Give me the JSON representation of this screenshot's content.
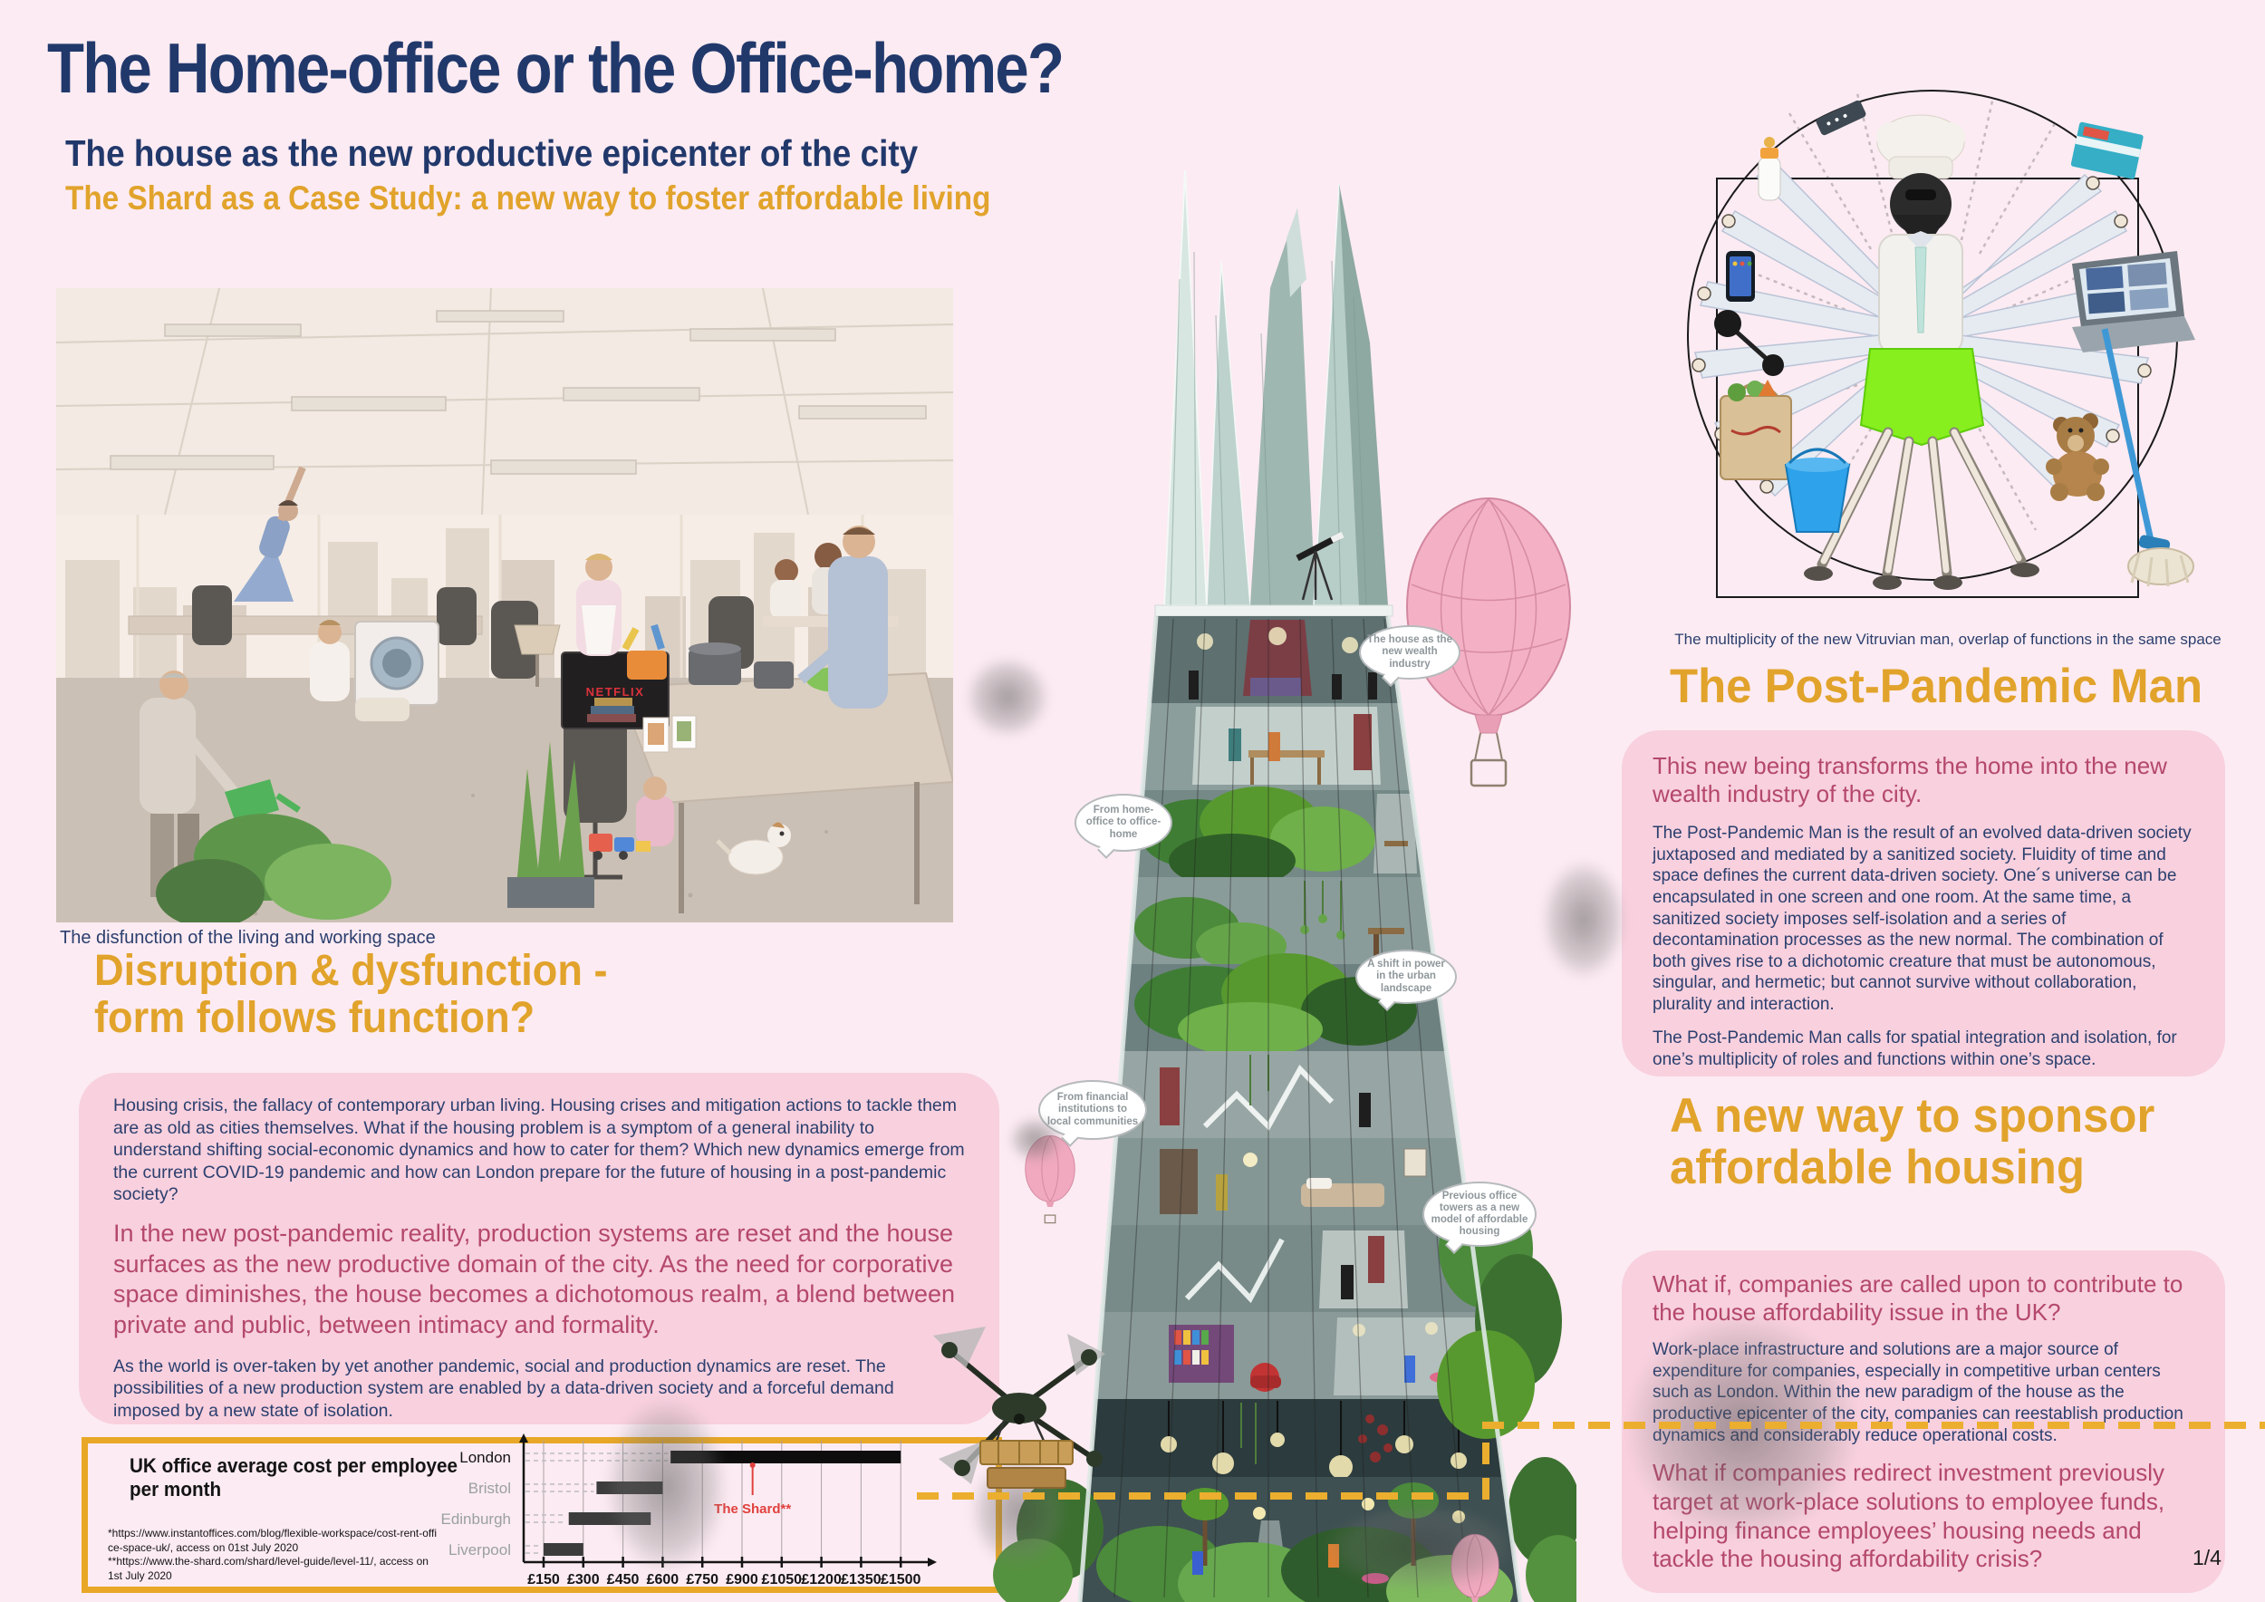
{
  "page": {
    "title": "The Home-office or the Office-home?",
    "subtitle": "The house as the new productive epicenter of the city",
    "tagline": "The Shard as a Case Study: a new way to foster affordable living",
    "page_number": "1/4"
  },
  "colors": {
    "background": "#fcebf2",
    "panel_pink": "#f8d0de",
    "navy": "#2b3f6e",
    "orange_accent": "#e1a32b",
    "magenta": "#b4486b",
    "chart_border": "#e8a727",
    "chart_annotation_red": "#e0413e",
    "route_dash_orange": "#ebae2e"
  },
  "office_photo": {
    "caption": "The disfunction of the living and working space",
    "tv_label": "NETFLIX"
  },
  "disruption": {
    "heading_line1": "Disruption & dysfunction -",
    "heading_line2": "form follows function?",
    "p1": "Housing crisis, the fallacy of contemporary urban living. Housing crises and mitigation actions to tackle them are as old as cities themselves. What if the housing problem is a symptom of a general inability to understand shifting social-economic dynamics and how to cater for them? Which new dynamics emerge from the current COVID-19 pandemic and how can London prepare for the future of housing in a post-pandemic society?",
    "p2": "In the new post-pandemic reality, production systems are reset and the house surfaces as the new productive domain of the city. As the need for corporative space diminishes, the house becomes a dichotomous realm, a blend between private and public, between intimacy and formality.",
    "p3": "As the world is over-taken by yet another pandemic, social and production dynamics are reset. The possibilities of a new production system are enabled by a data-driven society and a forceful demand imposed by a new state of isolation."
  },
  "chart": {
    "title_line1": "UK office average cost per employee",
    "title_line2": "per month",
    "footnote1": "*https://www.instantoffices.com/blog/flexible-workspace/cost-rent-offi",
    "footnote2": "ce-space-uk/, access on 01st July 2020",
    "footnote3": "**https://www.the-shard.com/shard/level-guide/level-11/, access on",
    "footnote4": "1st July 2020"
  },
  "chart_data": {
    "type": "bar",
    "orientation": "horizontal-range",
    "title": "UK office average cost per employee per month",
    "categories": [
      "London",
      "Bristol",
      "Edinburgh",
      "Liverpool"
    ],
    "series": [
      {
        "name": "Monthly office cost range per employee (GBP)",
        "ranges": [
          [
            630,
            1500
          ],
          [
            350,
            600
          ],
          [
            245,
            555
          ],
          [
            150,
            300
          ]
        ]
      }
    ],
    "annotation": {
      "label": "The Shard**",
      "value": 940,
      "category": "London"
    },
    "x_ticks": [
      150,
      300,
      450,
      600,
      750,
      900,
      1050,
      1200,
      1350,
      1500
    ],
    "x_tick_labels": [
      "£150",
      "£300",
      "£450",
      "£600",
      "£750",
      "£900",
      "£1050",
      "£1200",
      "£1350",
      "£1500"
    ],
    "xlim": [
      0,
      1600
    ],
    "xlabel": "",
    "ylabel": "",
    "grid": true,
    "legend": "none"
  },
  "tower": {
    "bubbles": [
      "The house as the new wealth industry",
      "From home-office to office-home",
      "A shift in power in the urban landscape",
      "From financial institutions to local communities",
      "Previous office towers as a new model of affordable housing"
    ]
  },
  "vitruvian": {
    "caption": "The multiplicity of the new Vitruvian man, overlap of functions in the same space"
  },
  "post_pandemic": {
    "heading": "The Post-Pandemic Man",
    "lead": "This new being transforms the home into the new wealth industry of the city.",
    "body1": "The Post-Pandemic Man is the result of an evolved data-driven society juxtaposed and mediated by a sanitized society. Fluidity of time and space defines the current data-driven society. One´s universe can be encapsulated in one screen and one room. At the same time, a sanitized society imposes self-isolation and a series of decontamination processes as the new normal. The combination of both gives rise to a dichotomic creature that must be autonomous, singular, and hermetic; but cannot survive without collaboration, plurality and interaction.",
    "body2": "The Post-Pandemic Man calls for spatial integration and isolation, for one’s multiplicity of roles and functions within one’s space."
  },
  "sponsor": {
    "heading_line1": "A new way to sponsor",
    "heading_line2": "affordable housing",
    "lead": "What if, companies are called upon to contribute to the house affordability issue in the UK?",
    "body": "Work-place infrastructure and solutions are a major source of expenditure for companies, especially in competitive urban centers such as London. Within the new paradigm of the house as the productive epicenter of the city, companies can reestablish production dynamics and considerably reduce operational costs.",
    "question": "What if companies redirect investment previously target at work-place solutions to employee funds, helping finance employees’ housing needs and tackle the housing affordability crisis?"
  }
}
